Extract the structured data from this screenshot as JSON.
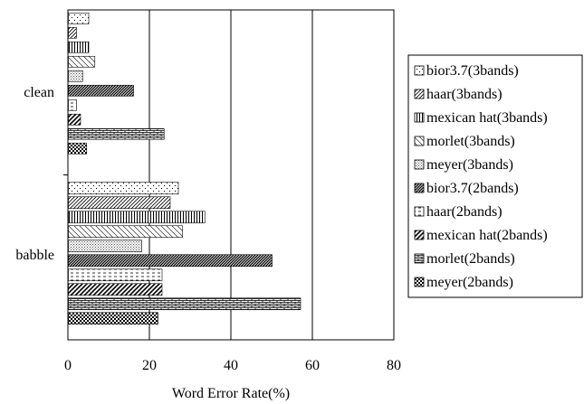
{
  "chart_data": {
    "type": "bar",
    "orientation": "horizontal",
    "categories": [
      "clean",
      "babble"
    ],
    "series": [
      {
        "name": "bior3.7(3bands)",
        "pattern": "sparse-dots",
        "values": [
          5,
          27
        ]
      },
      {
        "name": "haar(3bands)",
        "pattern": "diagonal-fine",
        "values": [
          2,
          25
        ]
      },
      {
        "name": "mexican hat(3bands)",
        "pattern": "vertical-lines",
        "values": [
          5,
          33.5
        ]
      },
      {
        "name": "morlet(3bands)",
        "pattern": "diagonal-wide",
        "values": [
          6.5,
          28
        ]
      },
      {
        "name": "meyer(3bands)",
        "pattern": "dense-dots",
        "values": [
          3.5,
          18
        ]
      },
      {
        "name": "bior3.7(2bands)",
        "pattern": "diagonal-dense",
        "values": [
          16,
          50
        ]
      },
      {
        "name": "haar(2bands)",
        "pattern": "dashed-horizontal",
        "values": [
          2,
          23
        ]
      },
      {
        "name": "mexican hat(2bands)",
        "pattern": "diagonal-bold",
        "values": [
          3,
          23
        ]
      },
      {
        "name": "morlet(2bands)",
        "pattern": "brick",
        "values": [
          23.5,
          57
        ]
      },
      {
        "name": "meyer(2bands)",
        "pattern": "checker",
        "values": [
          4.5,
          22
        ]
      }
    ],
    "xlabel": "Word Error Rate(%)",
    "ylabel": "",
    "xlim": [
      0,
      80
    ],
    "xticks": [
      0,
      20,
      40,
      60,
      80
    ],
    "grid": "vertical",
    "legend_placement": "right"
  }
}
